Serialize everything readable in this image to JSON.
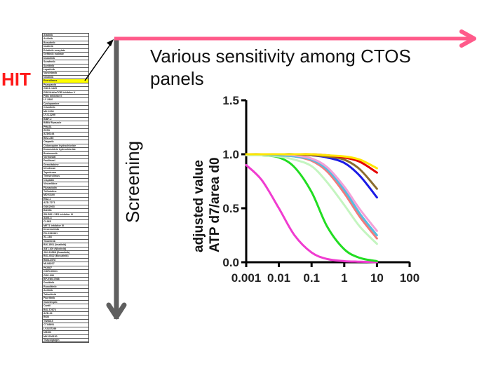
{
  "hit_label": "HIT",
  "title": "Various sensitivity among CTOS panels",
  "screening_label": "Screening",
  "colors": {
    "hit": "#ff1a1a",
    "horizontal_arrow": "#ff5a8a",
    "vertical_arrow": "#5f5f5f",
    "highlight": "#ffff00"
  },
  "compound_list": {
    "highlighted_index": 12,
    "items": [
      "Afatinib",
      "Axitinib",
      "Bosutinib",
      "Imatinib",
      "Erlotinib mesylate",
      "Gefitinib maleate",
      "Dasatinib",
      "Sorafenib",
      "Sunitinib",
      "Lapatinib",
      "Vandetanib",
      "Nilotinib",
      "Everolimus",
      "Pazopanib",
      "GSK1-1425",
      "PI3K/Akt/mTOR Inhibitor V",
      "PI3K Inhibitor II",
      "LY 2940",
      "Cyclopamine",
      "Crizotinib",
      "MK-2206",
      "LY-S-2299",
      "BIBF-2",
      "BIBW Pyrazole",
      "PHA31",
      "ZSTK",
      "AZD6244",
      "BEZ-235",
      "Olaparib",
      "Chloroquine hydrochloride",
      "Doxorubicin hydrochloride",
      "Bortezomib",
      "Vorinostat",
      "Paclitaxel",
      "Gemcitabine",
      "Irinotecan",
      "Topotecan",
      "Temsirolimus",
      "Cisplatin",
      "Vinorelbine",
      "Fluvastatin",
      "Trifluridine",
      "MDV3100",
      "ENZ-1",
      "AZD-7271",
      "GSK2003",
      "BI2536",
      "SB-BIS LXR1 inhibitor III",
      "AMG-3",
      "CI-965",
      "MET1 inhibitor III",
      "Decernotinib",
      "PD-0332991",
      "XL-184",
      "Tivantinib",
      "BIX-1501 (Imatinib)",
      "ABT-100 (Nilotinib)",
      "JNJ-10568 (Dasatinib)",
      "BIO-4522 (Bosutinib)",
      "BMS-2578",
      "MLN8237",
      "PKI587",
      "CHIR-99021",
      "GSK-690",
      "BP-EWC7988",
      "Dovitinib",
      "Ruxolitinib",
      "Axitinib",
      "Tofacitinib",
      "Pacritinib",
      "Ganetespib",
      "Cantil",
      "BIO-T2674",
      "AZD-92",
      "BKB",
      "TW8015",
      "CTX8891",
      "LY2157299",
      "NR300",
      "MK2206150",
      "Thapsigargin"
    ]
  },
  "chart_data": {
    "type": "line",
    "title": "",
    "xlabel": "",
    "ylabel": "adjusted value ATP d7/area d0",
    "ylabel_lines": [
      "adjusted value",
      "ATP d7/area d0"
    ],
    "x_scale": "log",
    "xlim": [
      0.001,
      100
    ],
    "ylim": [
      0,
      1.5
    ],
    "x_ticks": [
      "0.001",
      "0.01",
      "0.1",
      "1",
      "10",
      "100"
    ],
    "x_tick_values": [
      0.001,
      0.01,
      0.1,
      1,
      10,
      100
    ],
    "y_ticks": [
      "0.0",
      "0.5",
      "1.0",
      "1.5"
    ],
    "y_tick_values": [
      0,
      0.5,
      1.0,
      1.5
    ],
    "grid": false,
    "legend": "none",
    "x": [
      0.001,
      0.003,
      0.01,
      0.03,
      0.1,
      0.3,
      1,
      3,
      10
    ],
    "series": [
      {
        "name": "magenta",
        "color": "#f03cd0",
        "values": [
          0.9,
          0.76,
          0.5,
          0.25,
          0.09,
          0.03,
          0.01,
          0.005,
          0.0
        ]
      },
      {
        "name": "green",
        "color": "#22dd22",
        "values": [
          1.0,
          0.99,
          0.97,
          0.88,
          0.65,
          0.33,
          0.12,
          0.04,
          0.01
        ]
      },
      {
        "name": "light-green",
        "color": "#c4f5c0",
        "values": [
          0.99,
          0.99,
          0.98,
          0.95,
          0.89,
          0.74,
          0.53,
          0.33,
          0.17
        ]
      },
      {
        "name": "salmon",
        "color": "#f27a7a",
        "values": [
          1.0,
          1.0,
          0.99,
          0.98,
          0.94,
          0.84,
          0.64,
          0.42,
          0.22
        ]
      },
      {
        "name": "cyan",
        "color": "#55bde0",
        "values": [
          1.0,
          1.0,
          0.99,
          0.98,
          0.95,
          0.86,
          0.67,
          0.45,
          0.25
        ]
      },
      {
        "name": "pink",
        "color": "#f4a0d8",
        "values": [
          1.0,
          1.0,
          1.0,
          0.99,
          0.96,
          0.88,
          0.7,
          0.49,
          0.29
        ]
      },
      {
        "name": "blue",
        "color": "#1a1ae6",
        "values": [
          1.0,
          1.0,
          1.0,
          1.0,
          0.99,
          0.97,
          0.92,
          0.8,
          0.6
        ]
      },
      {
        "name": "brown",
        "color": "#8b6c2e",
        "values": [
          1.0,
          1.0,
          1.0,
          1.0,
          0.99,
          0.98,
          0.95,
          0.86,
          0.68
        ]
      },
      {
        "name": "red",
        "color": "#e60000",
        "values": [
          1.0,
          1.0,
          1.0,
          1.0,
          1.0,
          0.99,
          0.97,
          0.93,
          0.83
        ]
      },
      {
        "name": "yellow",
        "color": "#ffe600",
        "values": [
          1.0,
          1.0,
          1.0,
          1.0,
          1.0,
          0.99,
          0.98,
          0.95,
          0.87
        ]
      }
    ]
  }
}
